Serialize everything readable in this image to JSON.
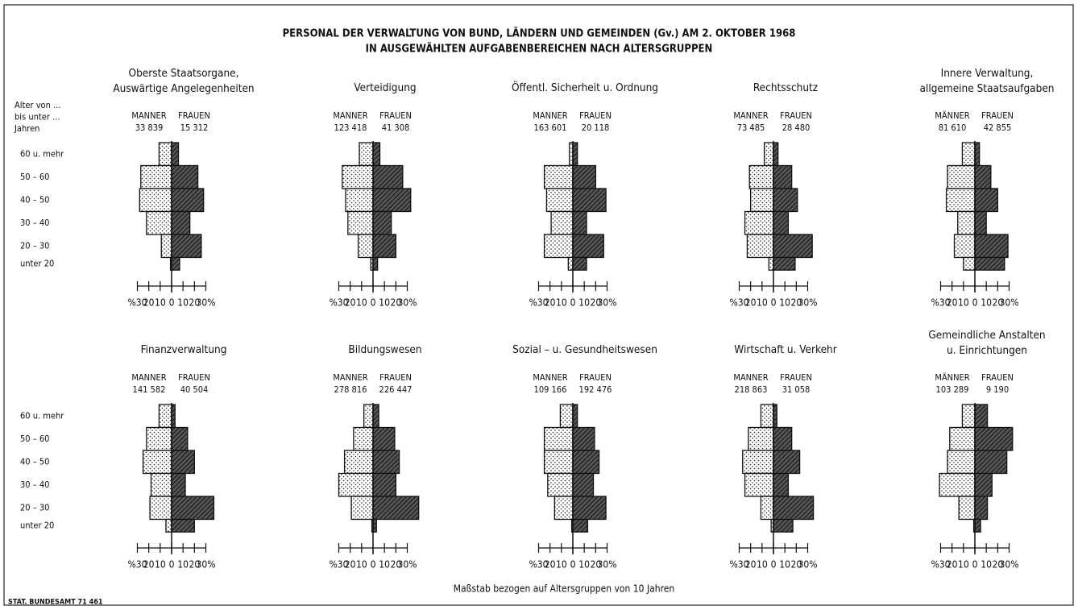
{
  "title": [
    "PERSONAL DER VERWALTUNG VON BUND, LÄNDERN UND GEMEINDEN (Gv.) AM 2. OKTOBER 1968",
    "IN AUSGEWÄHLTEN AUFGABENBEREICHEN NACH ALTERSGRUPPEN"
  ],
  "age_axis": {
    "label": [
      "Alter von ...",
      "bis unter ...",
      "Jahren"
    ],
    "categories": [
      "60 u. mehr",
      "50 – 60",
      "40 – 50",
      "30 – 40",
      "20 – 30",
      "unter 20"
    ]
  },
  "xlim": [
    -30,
    30
  ],
  "xticks": [
    {
      "value": -30,
      "label": "%30"
    },
    {
      "value": -20,
      "label": "20"
    },
    {
      "value": -10,
      "label": "10"
    },
    0,
    10,
    20,
    {
      "value": 30,
      "label": "30%"
    }
  ],
  "footer": "Maßstab bezogen auf Altersgruppen von 10 Jahren",
  "source": "STAT. BUNDESAMT 71 461",
  "chart_data": [
    {
      "type": "pyramid",
      "title": [
        "Oberste Staatsorgane,",
        "Auswärtige Angelegenheiten"
      ],
      "series": [
        {
          "name": "MANNER",
          "total_label": "33 839",
          "pattern": "dotted",
          "values": [
            11,
            27,
            28,
            22,
            9,
            1
          ]
        },
        {
          "name": "FRAUEN",
          "total_label": "15 312",
          "pattern": "hatched",
          "values": [
            6,
            23,
            28,
            16,
            26,
            7
          ]
        }
      ]
    },
    {
      "type": "pyramid",
      "title": [
        "Verteidigung"
      ],
      "series": [
        {
          "name": "MANNER",
          "total_label": "123 418",
          "pattern": "dotted",
          "values": [
            12,
            27,
            24,
            22,
            13,
            2
          ]
        },
        {
          "name": "FRAUEN",
          "total_label": "41 308",
          "pattern": "hatched",
          "values": [
            6,
            26,
            33,
            16,
            20,
            4
          ]
        }
      ]
    },
    {
      "type": "pyramid",
      "title": [
        "Öffentl. Sicherheit u. Ordnung"
      ],
      "series": [
        {
          "name": "MANNER",
          "total_label": "163 601",
          "pattern": "dotted",
          "values": [
            3,
            25,
            23,
            19,
            25,
            4
          ]
        },
        {
          "name": "FRAUEN",
          "total_label": "20 118",
          "pattern": "hatched",
          "values": [
            4,
            20,
            29,
            12,
            27,
            12
          ]
        }
      ]
    },
    {
      "type": "pyramid",
      "title": [
        "Rechtsschutz"
      ],
      "series": [
        {
          "name": "MANNER",
          "total_label": "73 485",
          "pattern": "dotted",
          "values": [
            8,
            21,
            20,
            25,
            23,
            4
          ]
        },
        {
          "name": "FRAUEN",
          "total_label": "28 480",
          "pattern": "hatched",
          "values": [
            4,
            16,
            21,
            13,
            34,
            19
          ]
        }
      ]
    },
    {
      "type": "pyramid",
      "title": [
        "Innere Verwaltung,",
        "allgemeine Staatsaufgaben"
      ],
      "series": [
        {
          "name": "MÄNNER",
          "total_label": "81 610",
          "pattern": "dotted",
          "values": [
            11,
            24,
            25,
            15,
            18,
            10
          ]
        },
        {
          "name": "FRAUEN",
          "total_label": "42 855",
          "pattern": "hatched",
          "values": [
            4,
            14,
            20,
            10,
            29,
            26
          ]
        }
      ]
    },
    {
      "type": "pyramid",
      "title": [
        "Finanzverwaltung"
      ],
      "series": [
        {
          "name": "MANNER",
          "total_label": "141 582",
          "pattern": "dotted",
          "values": [
            11,
            22,
            25,
            18,
            19,
            5
          ]
        },
        {
          "name": "FRAUEN",
          "total_label": "40 504",
          "pattern": "hatched",
          "values": [
            3,
            14,
            20,
            12,
            37,
            20
          ]
        }
      ]
    },
    {
      "type": "pyramid",
      "title": [
        "Bildungswesen"
      ],
      "series": [
        {
          "name": "MANNER",
          "total_label": "278 816",
          "pattern": "dotted",
          "values": [
            8,
            17,
            25,
            30,
            19,
            1
          ]
        },
        {
          "name": "FRAUEN",
          "total_label": "226 447",
          "pattern": "hatched",
          "values": [
            5,
            19,
            23,
            20,
            40,
            3
          ]
        }
      ]
    },
    {
      "type": "pyramid",
      "title": [
        "Sozial – u. Gesundheitswesen"
      ],
      "series": [
        {
          "name": "MANNER",
          "total_label": "109 166",
          "pattern": "dotted",
          "values": [
            11,
            25,
            25,
            22,
            16,
            1
          ]
        },
        {
          "name": "FRAUEN",
          "total_label": "192 476",
          "pattern": "hatched",
          "values": [
            4,
            19,
            23,
            18,
            29,
            13
          ]
        }
      ]
    },
    {
      "type": "pyramid",
      "title": [
        "Wirtschaft u. Verkehr"
      ],
      "series": [
        {
          "name": "MANNER",
          "total_label": "218 863",
          "pattern": "dotted",
          "values": [
            11,
            22,
            27,
            25,
            11,
            2
          ]
        },
        {
          "name": "FRAUEN",
          "total_label": "31 058",
          "pattern": "hatched",
          "values": [
            3,
            16,
            23,
            13,
            35,
            17
          ]
        }
      ]
    },
    {
      "type": "pyramid",
      "title": [
        "Gemeindliche Anstalten",
        "u. Einrichtungen"
      ],
      "series": [
        {
          "name": "MÄNNER",
          "total_label": "103 289",
          "pattern": "dotted",
          "values": [
            11,
            22,
            24,
            31,
            14,
            1
          ]
        },
        {
          "name": "FRAUEN",
          "total_label": "9 190",
          "pattern": "hatched",
          "values": [
            11,
            33,
            28,
            15,
            11,
            5
          ]
        }
      ]
    }
  ]
}
